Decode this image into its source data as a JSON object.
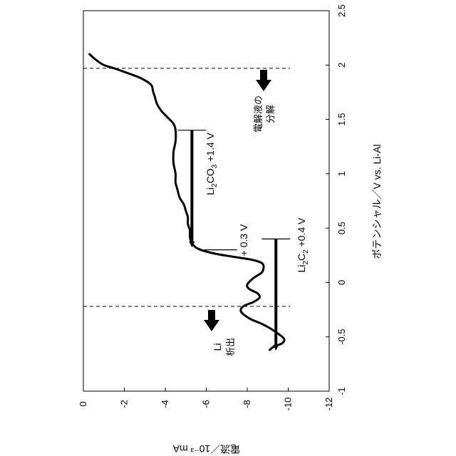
{
  "chart_data": {
    "type": "line",
    "orientation": "rotated-90-clockwise",
    "x_axis": {
      "label": "ポテンシャル／V vs. Li-Al",
      "range": [
        -1,
        2.5
      ],
      "ticks": [
        "-1",
        "-0.5",
        "0",
        "0.5",
        "1",
        "1.5",
        "2",
        "2.5"
      ],
      "tick_values": [
        -1,
        -0.5,
        0,
        0.5,
        1,
        1.5,
        2,
        2.5
      ]
    },
    "y_axis": {
      "label": "電流／10⁻³ mA",
      "range": [
        0,
        -12
      ],
      "ticks": [
        "0",
        "-2",
        "-4",
        "-6",
        "-8",
        "-10",
        "-12"
      ],
      "tick_values": [
        0,
        -2,
        -4,
        -6,
        -8,
        -10,
        -12
      ]
    },
    "grid": false,
    "legend": "none",
    "series": [
      {
        "points": [
          [
            2.1,
            -0.3
          ],
          [
            2.05,
            -0.6
          ],
          [
            2.0,
            -1.0
          ],
          [
            1.97,
            -1.5
          ],
          [
            1.93,
            -2.1
          ],
          [
            1.88,
            -2.8
          ],
          [
            1.82,
            -3.3
          ],
          [
            1.76,
            -3.4
          ],
          [
            1.7,
            -3.5
          ],
          [
            1.64,
            -3.6
          ],
          [
            1.58,
            -3.8
          ],
          [
            1.52,
            -4.1
          ],
          [
            1.46,
            -4.4
          ],
          [
            1.4,
            -4.5
          ],
          [
            1.3,
            -4.5
          ],
          [
            1.2,
            -4.4
          ],
          [
            1.1,
            -4.4
          ],
          [
            1.0,
            -4.5
          ],
          [
            0.92,
            -4.5
          ],
          [
            0.85,
            -4.6
          ],
          [
            0.78,
            -4.7
          ],
          [
            0.72,
            -4.9
          ],
          [
            0.66,
            -5.0
          ],
          [
            0.6,
            -5.1
          ],
          [
            0.54,
            -5.1
          ],
          [
            0.48,
            -5.2
          ],
          [
            0.42,
            -5.2
          ],
          [
            0.36,
            -5.3
          ],
          [
            0.31,
            -5.6
          ],
          [
            0.27,
            -6.3
          ],
          [
            0.24,
            -7.2
          ],
          [
            0.21,
            -8.2
          ],
          [
            0.18,
            -8.7
          ],
          [
            0.14,
            -8.8
          ],
          [
            0.09,
            -8.7
          ],
          [
            0.04,
            -8.3
          ],
          [
            -0.02,
            -8.0
          ],
          [
            -0.06,
            -8.1
          ],
          [
            -0.1,
            -8.5
          ],
          [
            -0.14,
            -8.6
          ],
          [
            -0.18,
            -8.3
          ],
          [
            -0.22,
            -7.8
          ],
          [
            -0.27,
            -7.7
          ],
          [
            -0.33,
            -8.1
          ],
          [
            -0.38,
            -8.7
          ],
          [
            -0.42,
            -9.1
          ],
          [
            -0.47,
            -9.5
          ],
          [
            -0.52,
            -9.8
          ],
          [
            -0.56,
            -9.7
          ],
          [
            -0.59,
            -9.3
          ],
          [
            -0.62,
            -9.1
          ]
        ]
      }
    ],
    "reference_lines": [
      {
        "potential": 1.97,
        "style": "dashed"
      },
      {
        "potential": -0.22,
        "style": "dashed"
      }
    ],
    "markers": [
      {
        "label_main": "Li",
        "label_sub": "2",
        "label_main2": "CO",
        "label_sub2": "3",
        "label_tail": " +1.4 V",
        "potential_start": 1.4,
        "potential_end": 0.35,
        "current": -5.3
      },
      {
        "label_main": "Li",
        "label_sub": "2",
        "label_main2": "C",
        "label_sub2": "2",
        "label_tail": " +0.4 V",
        "potential_start": 0.4,
        "potential_end": -0.6,
        "current": -9.4
      }
    ],
    "annotations": {
      "electrolyte_line1": "電解液の",
      "electrolyte_line2": "分解",
      "li_line1": "Li",
      "li_line2": "析出",
      "v03": "+ 0.3 V"
    },
    "colors": {
      "line": "#000000",
      "frame": "#000000"
    }
  }
}
